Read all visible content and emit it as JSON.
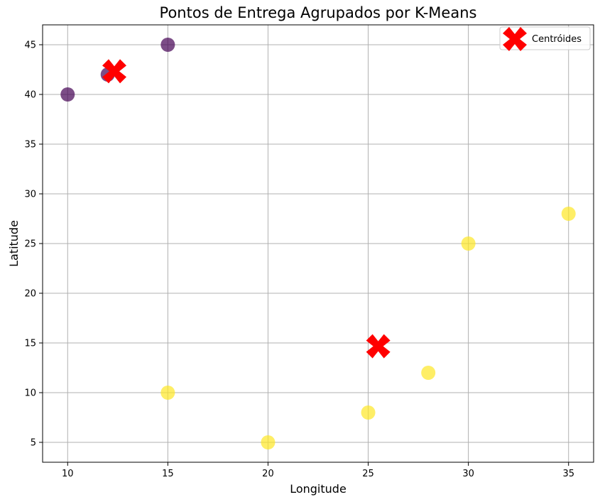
{
  "chart_data": {
    "type": "scatter",
    "title": "Pontos de Entrega Agrupados por K-Means",
    "xlabel": "Longitude",
    "ylabel": "Latitude",
    "xlim": [
      8.75,
      36.25
    ],
    "ylim": [
      3.0,
      47.0
    ],
    "xticks": [
      10,
      15,
      20,
      25,
      30,
      35
    ],
    "yticks": [
      5,
      10,
      15,
      20,
      25,
      30,
      35,
      40,
      45
    ],
    "grid": true,
    "legend_placement": "top-right",
    "series": [
      {
        "cluster": 0,
        "color": "#440154",
        "points": [
          {
            "x": 10,
            "y": 40
          },
          {
            "x": 12,
            "y": 42
          },
          {
            "x": 15,
            "y": 45
          }
        ]
      },
      {
        "cluster": 1,
        "color": "#fde725",
        "points": [
          {
            "x": 15,
            "y": 10
          },
          {
            "x": 20,
            "y": 5
          },
          {
            "x": 25,
            "y": 8
          },
          {
            "x": 28,
            "y": 12
          },
          {
            "x": 30,
            "y": 25
          },
          {
            "x": 35,
            "y": 28
          }
        ]
      }
    ],
    "centroids": {
      "name": "Centróides",
      "color": "#ff0000",
      "marker": "X",
      "points": [
        {
          "x": 12.33,
          "y": 42.33
        },
        {
          "x": 25.5,
          "y": 14.67
        }
      ]
    }
  }
}
